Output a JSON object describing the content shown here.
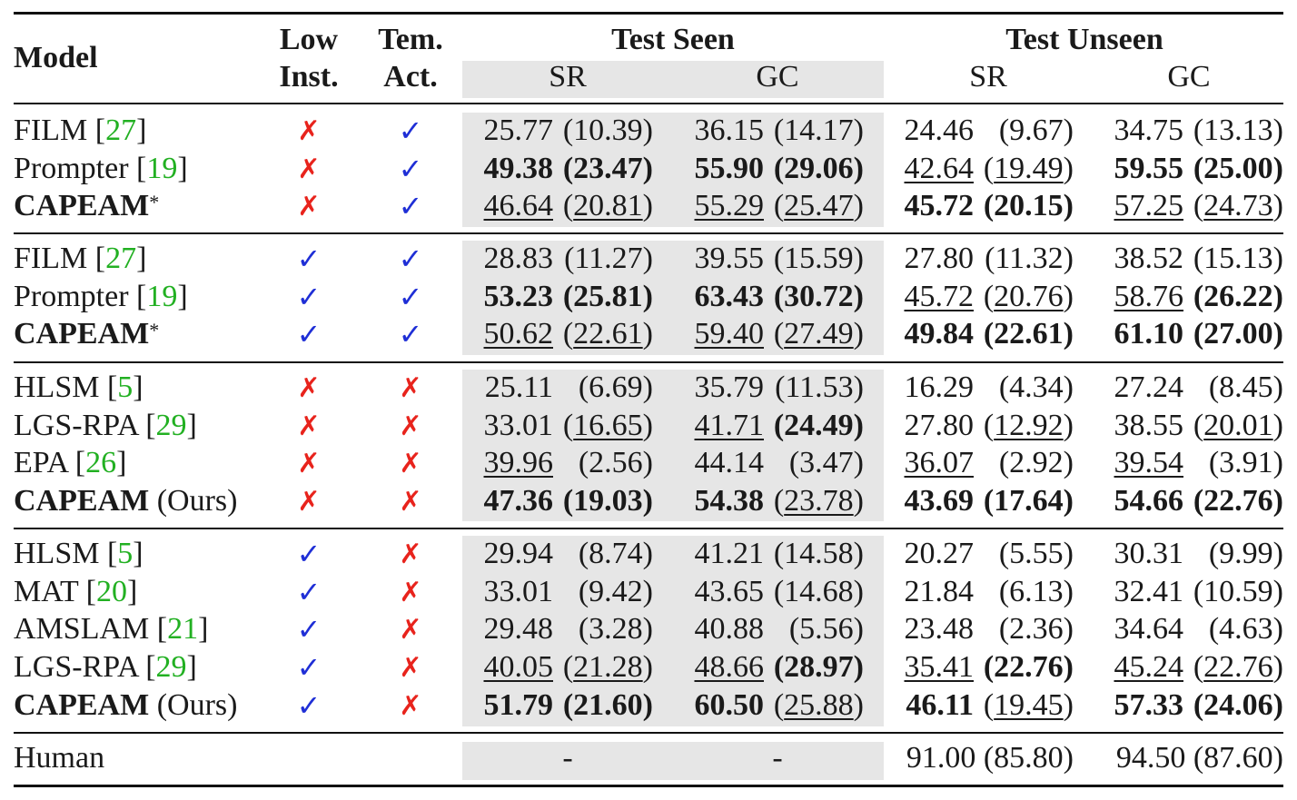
{
  "header": {
    "model": "Model",
    "low_inst": [
      "Low",
      "Inst."
    ],
    "tem_act": [
      "Tem.",
      "Act."
    ],
    "test_seen": "Test Seen",
    "test_unseen": "Test Unseen",
    "sr": "SR",
    "gc": "GC"
  },
  "groups": [
    [
      {
        "name": "FILM",
        "ref": "27",
        "low": "cross",
        "tem": "check",
        "seen_sr": {
          "v": "25.77",
          "p": "10.39"
        },
        "seen_gc": {
          "v": "36.15",
          "p": "14.17"
        },
        "unseen_sr": {
          "v": "24.46",
          "p": "9.67"
        },
        "unseen_gc": {
          "v": "34.75",
          "p": "13.13"
        }
      },
      {
        "name": "Prompter",
        "ref": "19",
        "low": "cross",
        "tem": "check",
        "seen_sr": {
          "v": "49.38",
          "p": "23.47",
          "vb": true,
          "pb": true
        },
        "seen_gc": {
          "v": "55.90",
          "p": "29.06",
          "vb": true,
          "pb": true
        },
        "unseen_sr": {
          "v": "42.64",
          "p": "19.49",
          "vu": true,
          "pu": true
        },
        "unseen_gc": {
          "v": "59.55",
          "p": "25.00",
          "vb": true,
          "pb": true
        }
      },
      {
        "name": "CAPEAM",
        "star": true,
        "bold": true,
        "low": "cross",
        "tem": "check",
        "seen_sr": {
          "v": "46.64",
          "p": "20.81",
          "vu": true,
          "pu": true
        },
        "seen_gc": {
          "v": "55.29",
          "p": "25.47",
          "vu": true,
          "pu": true
        },
        "unseen_sr": {
          "v": "45.72",
          "p": "20.15",
          "vb": true,
          "pb": true
        },
        "unseen_gc": {
          "v": "57.25",
          "p": "24.73",
          "vu": true,
          "pu": true
        }
      }
    ],
    [
      {
        "name": "FILM",
        "ref": "27",
        "low": "check",
        "tem": "check",
        "seen_sr": {
          "v": "28.83",
          "p": "11.27"
        },
        "seen_gc": {
          "v": "39.55",
          "p": "15.59"
        },
        "unseen_sr": {
          "v": "27.80",
          "p": "11.32"
        },
        "unseen_gc": {
          "v": "38.52",
          "p": "15.13"
        }
      },
      {
        "name": "Prompter",
        "ref": "19",
        "low": "check",
        "tem": "check",
        "seen_sr": {
          "v": "53.23",
          "p": "25.81",
          "vb": true,
          "pb": true
        },
        "seen_gc": {
          "v": "63.43",
          "p": "30.72",
          "vb": true,
          "pb": true
        },
        "unseen_sr": {
          "v": "45.72",
          "p": "20.76",
          "vu": true,
          "pu": true
        },
        "unseen_gc": {
          "v": "58.76",
          "p": "26.22",
          "vu": true,
          "pb": true
        }
      },
      {
        "name": "CAPEAM",
        "star": true,
        "bold": true,
        "low": "check",
        "tem": "check",
        "seen_sr": {
          "v": "50.62",
          "p": "22.61",
          "vu": true,
          "pu": true
        },
        "seen_gc": {
          "v": "59.40",
          "p": "27.49",
          "vu": true,
          "pu": true
        },
        "unseen_sr": {
          "v": "49.84",
          "p": "22.61",
          "vb": true,
          "pb": true
        },
        "unseen_gc": {
          "v": "61.10",
          "p": "27.00",
          "vb": true,
          "pb": true
        }
      }
    ],
    [
      {
        "name": "HLSM",
        "ref": "5",
        "low": "cross",
        "tem": "cross",
        "seen_sr": {
          "v": "25.11",
          "p": "6.69"
        },
        "seen_gc": {
          "v": "35.79",
          "p": "11.53"
        },
        "unseen_sr": {
          "v": "16.29",
          "p": "4.34"
        },
        "unseen_gc": {
          "v": "27.24",
          "p": "8.45"
        }
      },
      {
        "name": "LGS-RPA",
        "ref": "29",
        "low": "cross",
        "tem": "cross",
        "seen_sr": {
          "v": "33.01",
          "p": "16.65",
          "pu": true
        },
        "seen_gc": {
          "v": "41.71",
          "p": "24.49",
          "vu": true,
          "pb": true
        },
        "unseen_sr": {
          "v": "27.80",
          "p": "12.92",
          "pu": true
        },
        "unseen_gc": {
          "v": "38.55",
          "p": "20.01",
          "pu": true
        }
      },
      {
        "name": "EPA",
        "ref": "26",
        "low": "cross",
        "tem": "cross",
        "seen_sr": {
          "v": "39.96",
          "p": "2.56",
          "vu": true
        },
        "seen_gc": {
          "v": "44.14",
          "p": "3.47"
        },
        "unseen_sr": {
          "v": "36.07",
          "p": "2.92",
          "vu": true
        },
        "unseen_gc": {
          "v": "39.54",
          "p": "3.91",
          "vu": true
        }
      },
      {
        "name": "CAPEAM",
        "ours": "(Ours)",
        "bold": true,
        "low": "cross",
        "tem": "cross",
        "seen_sr": {
          "v": "47.36",
          "p": "19.03",
          "vb": true,
          "pb": true
        },
        "seen_gc": {
          "v": "54.38",
          "p": "23.78",
          "vb": true,
          "pu": true
        },
        "unseen_sr": {
          "v": "43.69",
          "p": "17.64",
          "vb": true,
          "pb": true
        },
        "unseen_gc": {
          "v": "54.66",
          "p": "22.76",
          "vb": true,
          "pb": true
        }
      }
    ],
    [
      {
        "name": "HLSM",
        "ref": "5",
        "low": "check",
        "tem": "cross",
        "seen_sr": {
          "v": "29.94",
          "p": "8.74"
        },
        "seen_gc": {
          "v": "41.21",
          "p": "14.58"
        },
        "unseen_sr": {
          "v": "20.27",
          "p": "5.55"
        },
        "unseen_gc": {
          "v": "30.31",
          "p": "9.99"
        }
      },
      {
        "name": "MAT",
        "ref": "20",
        "low": "check",
        "tem": "cross",
        "seen_sr": {
          "v": "33.01",
          "p": "9.42"
        },
        "seen_gc": {
          "v": "43.65",
          "p": "14.68"
        },
        "unseen_sr": {
          "v": "21.84",
          "p": "6.13"
        },
        "unseen_gc": {
          "v": "32.41",
          "p": "10.59"
        }
      },
      {
        "name": "AMSLAM",
        "ref": "21",
        "low": "check",
        "tem": "cross",
        "seen_sr": {
          "v": "29.48",
          "p": "3.28"
        },
        "seen_gc": {
          "v": "40.88",
          "p": "5.56"
        },
        "unseen_sr": {
          "v": "23.48",
          "p": "2.36"
        },
        "unseen_gc": {
          "v": "34.64",
          "p": "4.63"
        }
      },
      {
        "name": "LGS-RPA",
        "ref": "29",
        "low": "check",
        "tem": "cross",
        "seen_sr": {
          "v": "40.05",
          "p": "21.28",
          "vu": true,
          "pu": true
        },
        "seen_gc": {
          "v": "48.66",
          "p": "28.97",
          "vu": true,
          "pb": true
        },
        "unseen_sr": {
          "v": "35.41",
          "p": "22.76",
          "vu": true,
          "pb": true
        },
        "unseen_gc": {
          "v": "45.24",
          "p": "22.76",
          "vu": true,
          "pu": true
        }
      },
      {
        "name": "CAPEAM",
        "ours": "(Ours)",
        "bold": true,
        "low": "check",
        "tem": "cross",
        "seen_sr": {
          "v": "51.79",
          "p": "21.60",
          "vb": true,
          "pb": true
        },
        "seen_gc": {
          "v": "60.50",
          "p": "25.88",
          "vb": true,
          "pu": true
        },
        "unseen_sr": {
          "v": "46.11",
          "p": "19.45",
          "vb": true,
          "pu": true
        },
        "unseen_gc": {
          "v": "57.33",
          "p": "24.06",
          "vb": true,
          "pb": true
        }
      }
    ]
  ],
  "human": {
    "name": "Human",
    "seen_sr": "-",
    "seen_gc": "-",
    "unseen_sr": "91.00 (85.80)",
    "unseen_gc": "94.50 (87.60)"
  },
  "symbols": {
    "cross": "✗",
    "check": "✓"
  },
  "colors": {
    "cross": "#e8231c",
    "check": "#1f2fd6",
    "ref": "#22b022",
    "shade": "#e6e6e6"
  }
}
